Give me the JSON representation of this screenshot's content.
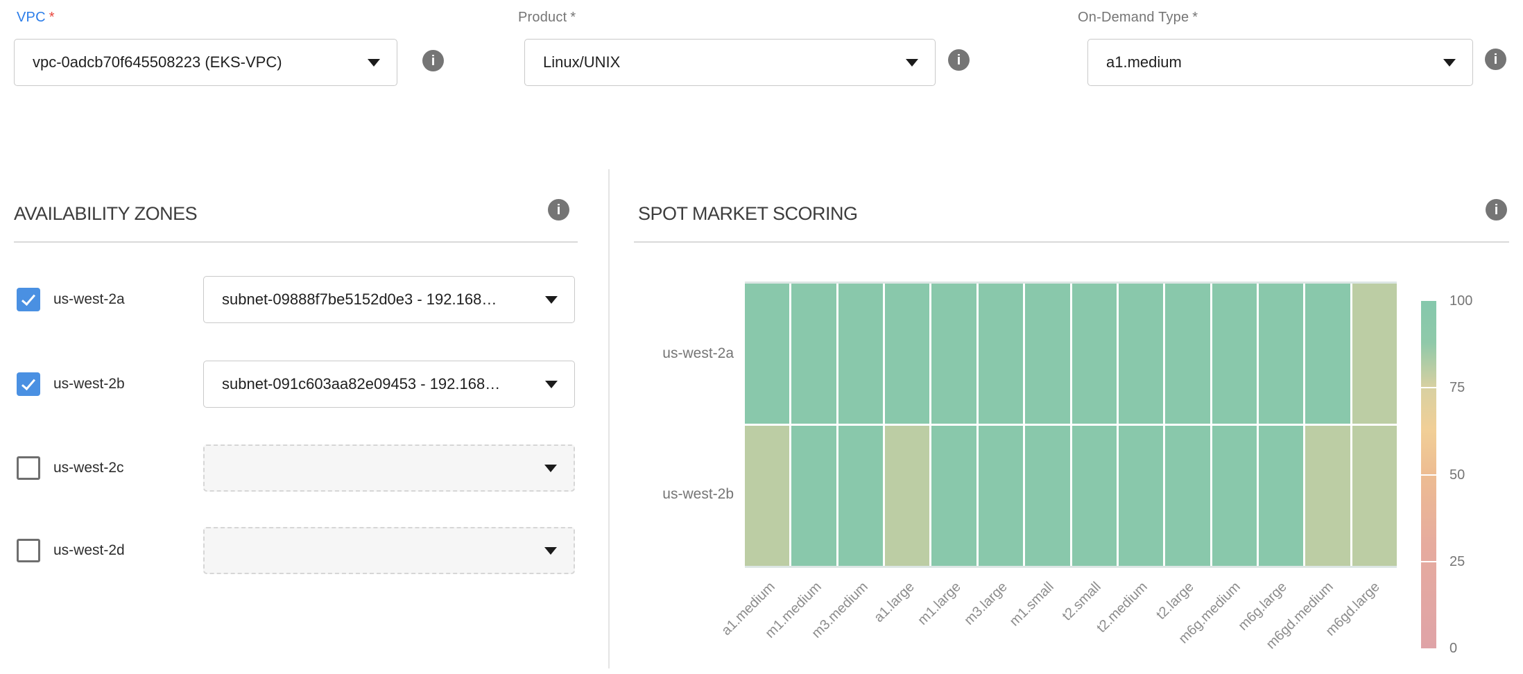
{
  "form": {
    "vpc": {
      "label": "VPC",
      "required_mark": "*",
      "value": "vpc-0adcb70f645508223 (EKS-VPC)"
    },
    "product": {
      "label": "Product",
      "required_mark": "*",
      "value": "Linux/UNIX"
    },
    "on_demand_type": {
      "label": "On-Demand Type",
      "required_mark": "*",
      "value": "a1.medium"
    }
  },
  "availability_zones": {
    "title": "AVAILABILITY ZONES",
    "rows": [
      {
        "zone": "us-west-2a",
        "checked": true,
        "subnet": "subnet-09888f7be5152d0e3 - 192.168…"
      },
      {
        "zone": "us-west-2b",
        "checked": true,
        "subnet": "subnet-091c603aa82e09453 - 192.168…"
      },
      {
        "zone": "us-west-2c",
        "checked": false,
        "subnet": ""
      },
      {
        "zone": "us-west-2d",
        "checked": false,
        "subnet": ""
      }
    ]
  },
  "spot_market_scoring": {
    "title": "SPOT MARKET SCORING"
  },
  "chart_data": {
    "type": "heatmap",
    "title": "SPOT MARKET SCORING",
    "x_categories": [
      "a1.medium",
      "m1.medium",
      "m3.medium",
      "a1.large",
      "m1.large",
      "m3.large",
      "m1.small",
      "t2.small",
      "t2.medium",
      "t2.large",
      "m6g.medium",
      "m6g.large",
      "m6gd.medium",
      "m6gd.large"
    ],
    "y_categories": [
      "us-west-2a",
      "us-west-2b"
    ],
    "series": [
      {
        "name": "us-west-2a",
        "values": [
          95,
          95,
          95,
          95,
          95,
          95,
          95,
          95,
          95,
          95,
          95,
          95,
          95,
          80
        ]
      },
      {
        "name": "us-west-2b",
        "values": [
          80,
          95,
          95,
          80,
          95,
          95,
          95,
          95,
          95,
          95,
          95,
          95,
          80,
          80
        ]
      }
    ],
    "value_range": [
      0,
      100
    ],
    "legend_position": "right",
    "colorbar": {
      "ticks": [
        100,
        75,
        50,
        25,
        0
      ],
      "stops": [
        {
          "v": 100,
          "c": "#85c8ac"
        },
        {
          "v": 88,
          "c": "#8fc9a9"
        },
        {
          "v": 75,
          "c": "#d8d0a1"
        },
        {
          "v": 63,
          "c": "#f1cf97"
        },
        {
          "v": 50,
          "c": "#edbc92"
        },
        {
          "v": 30,
          "c": "#e6ab9e"
        },
        {
          "v": 0,
          "c": "#dfa3a7"
        }
      ]
    },
    "colors": {
      "high_score": "#89c8ab",
      "mid_score": "#bccda4"
    }
  }
}
